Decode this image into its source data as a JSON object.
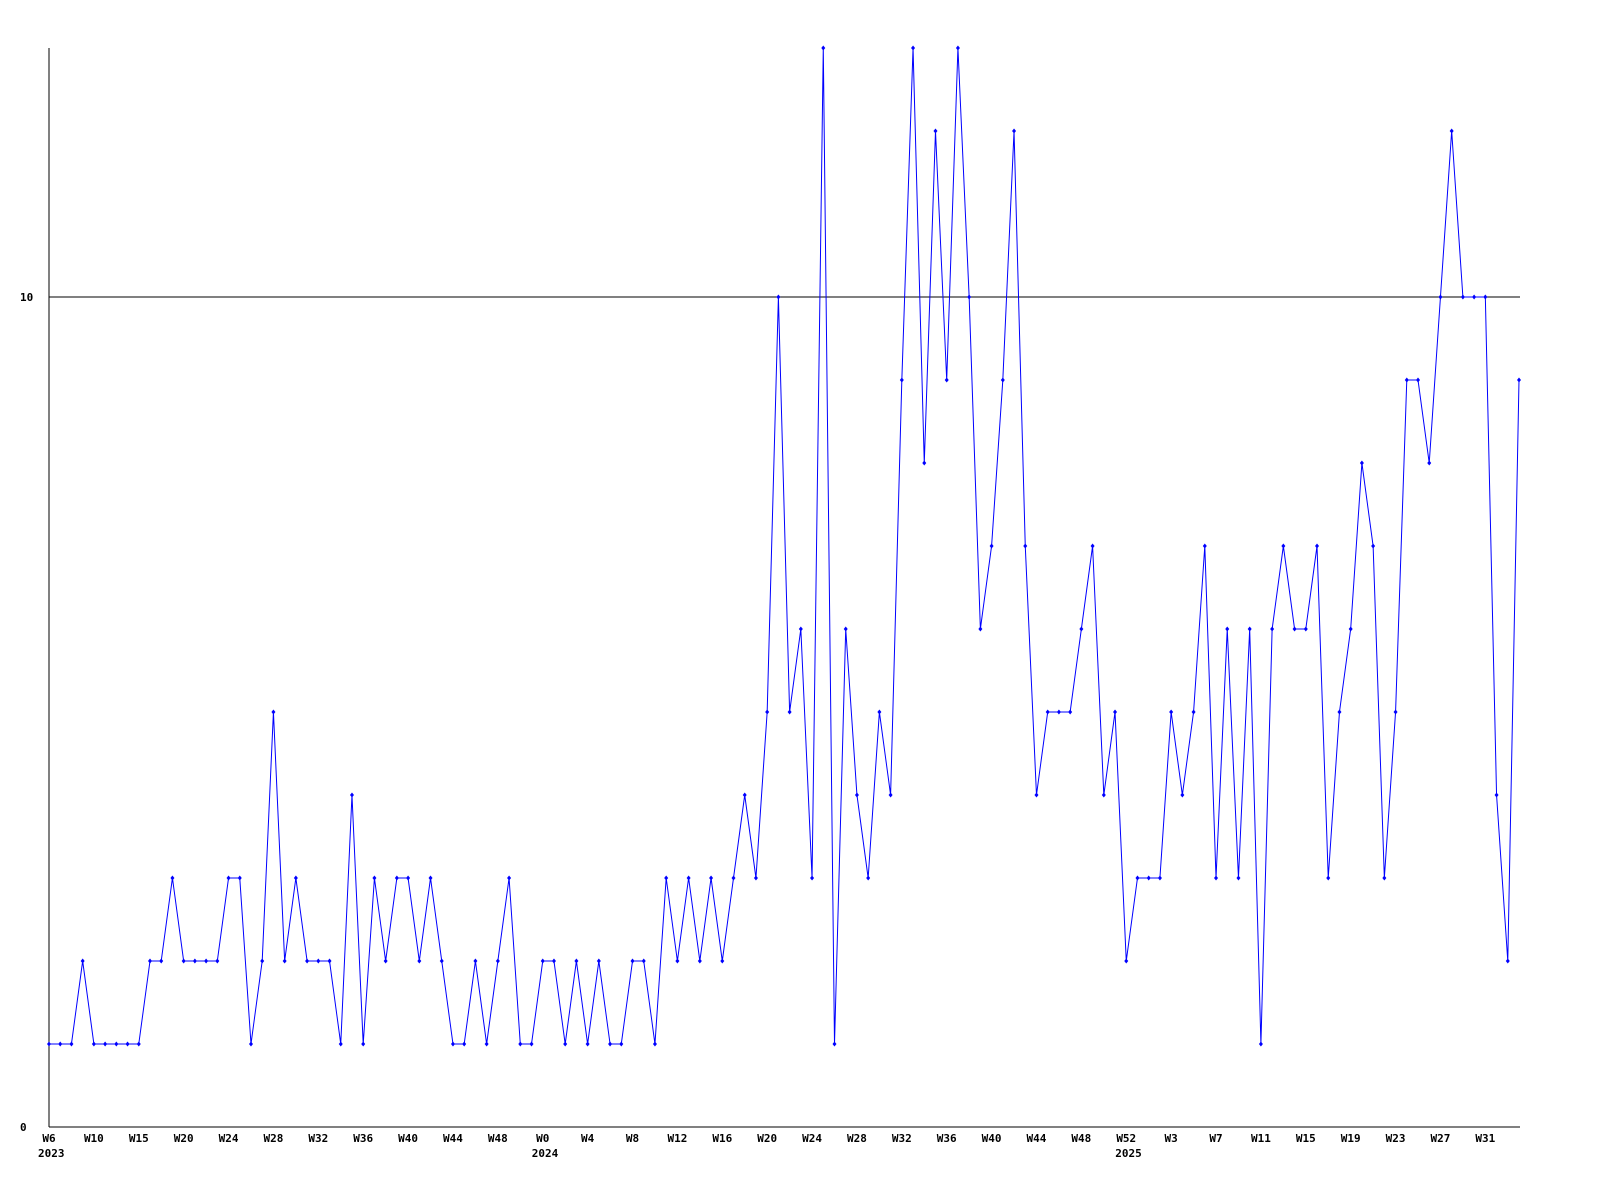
{
  "chart_data": {
    "type": "line",
    "categories": [
      "W6",
      null,
      null,
      null,
      "W10",
      null,
      null,
      null,
      "W15",
      null,
      null,
      null,
      "W20",
      null,
      null,
      null,
      "W24",
      null,
      null,
      null,
      "W28",
      null,
      null,
      null,
      "W32",
      null,
      null,
      null,
      "W36",
      null,
      null,
      null,
      "W40",
      null,
      null,
      null,
      "W44",
      null,
      null,
      null,
      "W48",
      null,
      null,
      null,
      "W0",
      null,
      null,
      null,
      "W4",
      null,
      null,
      null,
      "W8",
      null,
      null,
      null,
      "W12",
      null,
      null,
      null,
      "W16",
      null,
      null,
      null,
      "W20",
      null,
      null,
      null,
      "W24",
      null,
      null,
      null,
      "W28",
      null,
      null,
      null,
      "W32",
      null,
      null,
      null,
      "W36",
      null,
      null,
      null,
      "W40",
      null,
      null,
      null,
      "W44",
      null,
      null,
      null,
      "W48",
      null,
      null,
      null,
      "W52",
      null,
      null,
      null,
      "W3",
      null,
      null,
      null,
      "W7",
      null,
      null,
      null,
      "W11",
      null,
      null,
      null,
      "W15",
      null,
      null,
      null,
      "W19",
      null,
      null,
      null,
      "W23",
      null,
      null,
      null,
      "W27",
      null,
      null,
      null,
      "W31",
      null,
      null,
      null
    ],
    "years": [
      "2023",
      null,
      null,
      null,
      null,
      null,
      null,
      null,
      null,
      null,
      null,
      null,
      null,
      null,
      null,
      null,
      null,
      null,
      null,
      null,
      null,
      null,
      null,
      null,
      null,
      null,
      null,
      null,
      null,
      null,
      null,
      null,
      null,
      null,
      null,
      null,
      null,
      null,
      null,
      null,
      null,
      null,
      null,
      null,
      "2024",
      null,
      null,
      null,
      null,
      null,
      null,
      null,
      null,
      null,
      null,
      null,
      null,
      null,
      null,
      null,
      null,
      null,
      null,
      null,
      null,
      null,
      null,
      null,
      null,
      null,
      null,
      null,
      null,
      null,
      null,
      null,
      null,
      null,
      null,
      null,
      null,
      null,
      null,
      null,
      null,
      null,
      null,
      null,
      null,
      null,
      null,
      null,
      null,
      null,
      null,
      null,
      "2025",
      null,
      null,
      null,
      null,
      null,
      null,
      null,
      null,
      null,
      null,
      null,
      null,
      null,
      null,
      null,
      null,
      null,
      null,
      null,
      null,
      null,
      null,
      null,
      null,
      null,
      null,
      null,
      null,
      null,
      null,
      null,
      null,
      null,
      null,
      null
    ],
    "series": [
      {
        "color": "#0000ff",
        "values": [
          1,
          1,
          1,
          2,
          1,
          1,
          1,
          1,
          1,
          2,
          2,
          3,
          2,
          2,
          2,
          2,
          3,
          3,
          1,
          2,
          5,
          2,
          3,
          2,
          2,
          2,
          1,
          4,
          1,
          3,
          2,
          3,
          3,
          2,
          3,
          2,
          1,
          1,
          2,
          1,
          2,
          3,
          1,
          1,
          2,
          2,
          1,
          2,
          1,
          2,
          1,
          1,
          2,
          2,
          1,
          3,
          2,
          3,
          2,
          3,
          2,
          3,
          4,
          3,
          5,
          10,
          5,
          6,
          3,
          13,
          1,
          6,
          4,
          3,
          5,
          4,
          9,
          13,
          8,
          12,
          9,
          13,
          10,
          6,
          7,
          9,
          12,
          7,
          4,
          5,
          5,
          5,
          6,
          7,
          4,
          5,
          2,
          3,
          3,
          3,
          5,
          4,
          5,
          7,
          3,
          6,
          3,
          6,
          1,
          6,
          7,
          6,
          6,
          7,
          3,
          5,
          6,
          8,
          7,
          3,
          5,
          9,
          9,
          8,
          10,
          12,
          10,
          10,
          10,
          4,
          2,
          9
        ]
      }
    ],
    "ylim": [
      0,
      13
    ],
    "yticks": [
      0,
      10
    ],
    "grid": true
  }
}
